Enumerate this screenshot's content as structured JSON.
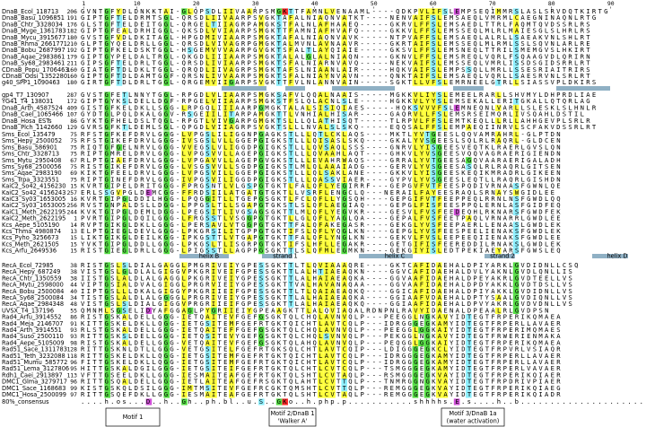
{
  "ruler": [
    1,
    10,
    20,
    30,
    40,
    50,
    60,
    70,
    80,
    90
  ],
  "groups": [
    {
      "rows": [
        {
          "name": "DnaB_Ecol_118713",
          "start": 206,
          "seq": "GVNTGFYDLDNKKTAI-GLQPSDLIIVAARPSMGKTTFAMNLVENAAML----QDKPVLIFSLEMPSEQIMMRSLASLSRVDQTKIRTG"
        },
        {
          "name": "DnaB_Basu_1096851",
          "start": 191,
          "seq": "GIPTGFTELDRMTSGL-QRSDLIIVAARPSVGKTAFALNIAQNVATKT----NENVAIFSLEMSAEQLVMRMLCAEGNINAQNLRTG"
        },
        {
          "name": "DnaB_Chtr_3328034",
          "start": 176,
          "seq": "GLSTGFTELDEITGGL-QRGELTIIAGRPAMGKSTFALNLAFHAAEQ-----GKRVLFFSLEMSAEDLTTRLFAQMTQVDSSRLRS"
        },
        {
          "name": "DnaB_Myge_1361783",
          "start": 182,
          "seq": "GIPTGFEALDRHIGGL-QKSDLVVIAARPSMGKTTFAMNIAFHVAFQ-----GKKVLFFSLEMSSEQLMLRLMAIESGLSLHRLRS"
        },
        {
          "name": "DnaB_Mycu_3915677",
          "start": 180,
          "seq": "GVSTGFVDLDKITAGL-HPGDMIVIAARPSMGKTAFALNIAQNVAVK-----NTPVAFFSLEMSAEQLALRLLSAEAKVNLSHLRT"
        },
        {
          "name": "DnaB_Rhma_2661771",
          "start": 210,
          "seq": "GLPTGYQELDRLLGGL-QRSDLVIVAGRPGMGKTALMVNLAVNAAVR-----GKRTAIFSLEMSSEQLMLRMLSSLSQVNLARLRE"
        },
        {
          "name": "DnaB_Bobu_2687997",
          "start": 192,
          "seq": "GIPTGFKELDSKTGGL-HSGEMVVVAARPGVGKTSFALTLAYQIAIE-----GKSVLFFSLEMSNEQLTTRILSMEMGVSLHKIRT"
        },
        {
          "name": "DnaB_Aqae_2983861",
          "start": 179,
          "seq": "GIPTGYPELDALTRGL-QKGDLIIIAARPSMGKTALALGLALNIAQN-----GKNVLFFSLEMSREQLVQRLFSQAAGVDLQRIRN"
        },
        {
          "name": "DnaB_Sy68_2983461",
          "start": 211,
          "seq": "GIPSGFTELDRLTGGL-QRSDLIVIAARPSMGKTSFALNIARNVAVQ-----NEKVAIFSLEMSSEQLVMRLISSDSGIDSRRLRT"
        },
        {
          "name": "CDnaB_Popu_1706463",
          "start": 160,
          "seq": "GIATGFTDLDKLTGGL-QRQDLIIVAGRPSMGKTAFSLNIAANLAIR-----HQKVAIFSLEMPSSQLLMRLLSSESRIAITRIRS"
        },
        {
          "name": "CDnaB_Odsi_1352280",
          "start": 160,
          "seq": "GIPTGFTDLDAMTGGF-QRSNLIVVAARPSMGKTSFALNIAYNVAVN-----QNKTAIFSLEMSAEQLVQRLLSAESRVNLSRLRT"
        },
        {
          "name": "g40_SPP1_1090463",
          "start": 180,
          "seq": "GIRTGFTDLDRLTGGL-QRGEMVIIGARPSVGKTTFVLNLANNVAIN-----SGKTLLVFSLEMRNEELGTRLLSIASSVPLDKIRS"
        }
      ]
    },
    {
      "rows": [
        {
          "name": "gp4_T7_130907",
          "start": 287,
          "seq": "GVSTGFETLNNYTGGL-RPGDLVLIAARPSMGKSAFVLQQALNAAIS-----MGKKVLIYSLEMEELRARLLSHVMYLDHPRDLIAE"
        },
        {
          "name": "YG41_T4_138031",
          "start": 172,
          "seq": "GIPTGYKSLDELLDGF-RPGELVIIAARPSMGKSTFSLQLACNLSLE-----HGKKVLYYSLEMSEKALLERITGKALLQTQRLAG"
        },
        {
          "name": "DnaB_Arth_4587524",
          "start": 409,
          "seq": "GISTGFKELDKLLSGG-LRPGQLIIIAARPGMGKTALALSISIQIAES-----HQKSVVVFSLEMNEQNLVARLLSLESKLSLHNLR"
        },
        {
          "name": "DnaB_Cael_1065466",
          "start": 107,
          "seq": "GYDTGLPQLDKALGGV-RSGEIILITARPAMGKTTLVNHIALHISAR-----GAQRVLLFSLEMSRSEIMQRLIVSQAHLDSTIL"
        },
        {
          "name": "DnaB_Hosa_ESTs",
          "start": 86,
          "seq": "GYKTGFHELDSLTQGL-RPGTLVIVGARPGMGKTSLLLQLATHISQT-----TLRPVLFFSLEMTKEQLLLRLLAHHGEVPLSRLR"
        },
        {
          "name": "DnaB_Plch_1142660",
          "start": 129,
          "seq": "GVRSGFKTLDEMLSGL-QPGDLVIIAGRPSVGKTSLLLNVALSLSKQ-----EQQSALFFSLEMPAEQIINRVLSCFAKVDSSRLRT"
        }
      ]
    },
    {
      "rows": [
        {
          "name": "Sms_Ecol_135479",
          "start": 75,
          "seq": "RFSTGFKEFDRVLGGG-LVPGSLILIGGNPGAGKSTLLLQTLCKLAQS----MKTLYVTGEESLQQVAMRAHRL-GLPTDN"
        },
        {
          "name": "Sms_Hepy_2500052",
          "start": 75,
          "seq": "RFSTGIKEFDRVLGGG-IVSGSLVLLGGEPGIGKSTLLLQISASLSKQ----GKALYVSGEESLSQLRLRAQRL-GLDCEN"
        },
        {
          "name": "Sms_Basu_586901",
          "start": 75,
          "seq": "RIQTGFGELNRVLGGG-VVEGSLVLIGGDPGIGKSTLLLQVSAQLSSS----GNRVLYISGEESVEQTKLRAERLGVSLQN"
        },
        {
          "name": "Sms_Chtr_3328713",
          "start": 75,
          "seq": "RIPTGMRELDRVLGGG-LVPGSVVLLAGEPGIGKSTLLLQVAAHLAQT----GHKVLYVSGEESVQQVAGRAERIGIENDN"
        },
        {
          "name": "Sms_Mytu_2950408",
          "start": 67,
          "seq": "RLPTGIAEFDRVLGGG-LVPGAVVLLAGEPGVGKSTLLLEVAHRWAQS----GRRALYVTGEESAGQVAARAERIGALADH"
        },
        {
          "name": "Sms_Sy68_2500056",
          "start": 75,
          "seq": "RISTGIKEFDRVLGGG-LVSGSVVLLSGDPGIGKSTLMLQLAAAIADG----GERVLYVSGEESASQLRLRAQRLGITSEN"
        },
        {
          "name": "Sms_Aqae_2983190",
          "start": 69,
          "seq": "KIKTGFEELDRVLGGG-LVPGSVILLGGEPGIGKSTLLLQLSAKLANE----GKKVLYISGEESKEQIKMRADRLGIKEEN"
        },
        {
          "name": "Sms_Trpa_3323551",
          "start": 75,
          "seq": "RIPTGINEFDRVLGGG-IVPGSVILIGGDPGIGKSTLLLQASSVIAER----GYPVLYVSGEESLEQTLLRAQRLGISHDN"
        },
        {
          "name": "KaiC2_So42_4156230",
          "start": 15,
          "seq": "KVRTGIPELDRITGGG-FPRGSNTLVLGSPGTGKTLFALQFLYEGIRRF---GEPGVFVTFEESPQDIVRNAASFGWNLQE"
        },
        {
          "name": "KaiC2_So42_4156243",
          "start": 257,
          "seq": "ERLSSGVPGLDEMCGG-FFRDSIILATGATGTGKTLLVSRFLENGCLQ---NERAILFAYEESRAQLSRNAYSWGIDLEE"
        },
        {
          "name": "KaiC3_Sy03_1653005",
          "start": 16,
          "seq": "KVRTGIPGLDDILHGG-LPQGGITLLTGEPGSGKTLFCLQFLLYGSQH----GEPGIFVTFEEPPEQLRRNLNSFGWDLQQ"
        },
        {
          "name": "KaiC2_Sy03_1653005",
          "start": 256,
          "seq": "RVSTGNPALDSLLDGG-LPPGSLTLLSGAPGTGKSTLSLQFLAEGIAQ----GEPGLFISFEESPPQLERNLASFGIDFEQ"
        },
        {
          "name": "KaiC1_Meth_2622195",
          "start": 244,
          "seq": "KVKTGIPGLDEMLDGG-LPEGSITLIVGSAGSGKTTLMLQFLYEGVKR----GESVLFVSFEEDEQHLRKNARSFGWDFEK"
        },
        {
          "name": "KaiC2_Meth_2622195",
          "start": 1,
          "seq": "PVRTGIPGLDQILGGG-LFRGSSTLVSGGPGTGKTLLGLQFLYAGLQA----GEPALFVSFEETPAQLVRNARRLGWDLEE"
        },
        {
          "name": "Kcs_Aepe_5105190",
          "start": 14,
          "seq": "RVPTGIKGLDKLLGGG-LPERSAVLVTGGPGTGKTTFALQFAKEGASR----GEKGLYVSFEEPAERLLENAASLGWDLEK"
        },
        {
          "name": "Kcs_Thma_4980874",
          "start": 13,
          "seq": "ELPTGIEGLDEVLGGG-LPKGRSILITGPPGTGKTIFSLQFLYQGLKN----GEPGLYVSFEESPEELIENAKSFGWDLEK"
        },
        {
          "name": "Kcs_Pyho_3256673",
          "start": 15,
          "seq": "LIKTGIKGLDEILKGG-IPKGSTTLVTGAPGTGKTTFALQFLYNGLKN----GEKVLFVSLEEPEEQIIENAKSFGWDLEE"
        },
        {
          "name": "Kcs_Meth_2621505",
          "start": 15,
          "seq": "YVKTGIPGLDDLLGGG-LPKGSLTLISGRPGTGKTIFSLHFLLEGAKR----GETGIFISFEEREDDILRNAKSLGWDLEK"
        },
        {
          "name": "Kcs_Arfu_2649536",
          "start": 15,
          "seq": "RISTGIEGLDRLLGGG-LPIGSSTLLAGPPGSGKTTLSLQFMLEGMKN----GEKGIYISLEDTPEKIAEYARSFGWSLEQ"
        }
      ]
    },
    {
      "rows": [
        {
          "name": "RecA_Ecol_72985",
          "start": 38,
          "seq": "RISTGSLSLDIALGAGGLPMGRIVEIYGPESSGKTTLTLQVIAAAQRE----GKTCAFIDAEHALDPIYARKLGVDIDNLLCSQ"
        },
        {
          "name": "RecA_Hepy_687249",
          "start": 38,
          "seq": "VISTGSLGLDLALGIGGVPKGRIVEIFGPESSGKTTLALHTIAEAQKN----GGVCAFIDAEHALDVLYAKNLGVDLQNLLIS"
        },
        {
          "name": "RecA_Chtr_1350559",
          "start": 38,
          "seq": "IISTGSLALDLALGAGGLPKGRIVEIYGPESSGKTTLALHAIAEAQKA----GGVAAFIDAEHALDPEYAKRLGVDTEELLVS"
        },
        {
          "name": "RecA_Mytu_2598000",
          "start": 44,
          "seq": "VIPTGSIALDVALGIGGLPRGRVIEIYGPESSGKTTVALHAVANAQAA----GGVAAFIDAEHALDPDYAKKLGVDTDSLLVS"
        },
        {
          "name": "RecA_Bobu_2500084",
          "start": 40,
          "seq": "IIPTGSLLLDKALGIGGYPKGRIIEIFGPESSGKTTLTLQAIAEAQKQ----GGICAFIDAEHALDPIYAKKLGVDIDNLLVS"
        },
        {
          "name": "RecA_Sy68_2500084",
          "start": 34,
          "seq": "TISTGSLALDLALGGGGLPRGRIVEIYGPESSGKTTLALHAIAEAQKA----GGIAAFVDAEHALDPTYSAALGVDIQNLLVS"
        },
        {
          "name": "RecA_Aqae_2984348",
          "start": 48,
          "seq": "VISTGSLSLDIALGIGGVPRGRIIEIFGPESSGKTTLALHAIAEAQKQ----GGIAAFIDAEHALDPVYAKRLGVDVDNLLVS"
        },
        {
          "name": "UVSX_T4_137196",
          "start": 55,
          "seq": "QMNMLSGSELIDYAFGGAGLPYGRIIEIYGPEAAGKTTLALQVIAQALRDNPNLRAVYIDAENALDPEAALRLGVDPSN"
        },
        {
          "name": "Rad4_Arfu_3914552",
          "start": 86,
          "seq": "RISTGSKALDELLGGG-IETQAITEVFGEFGSGKTQLCHQLAVNVQLP---PEEGGLNGKAVYIDTEGTFRPERIKQMAEA"
        },
        {
          "name": "Rad4_Meja_2146707",
          "start": 91,
          "seq": "KITTGSKELDKLLQGG-IETGSITEMFGEFRTGKTQICHTLAVTCQLP---IDRGGGEGKAMYIDTEGTFRPERLLAVAER"
        },
        {
          "name": "Rad4_Arth_3914551",
          "start": 93,
          "seq": "RLSTGSKALDELLGGG-IETQAITEFFGEFGSGKTQLCHQLAVNVQLP---PEEGGLGGKAIYIDTEGTFRPERIMQMAES"
        },
        {
          "name": "Rad4_Suso_2500110",
          "start": 93,
          "seq": "RITTGSKSLDELLGGG-IETQSITEVYGEFGSGKTQLCHQLSVNVQLP---PEKGGLNGKAVYIDTEGTFRWERIENMAKA"
        },
        {
          "name": "Rad4_Aepe_5105009",
          "start": 98,
          "seq": "RISTGSKALDELLGGG-VETQAITEVFGEFGSGKTQLAHQLAVNVQLP---PEQGGLGGKAIYIDTEGTFRPERIKQMAEA"
        },
        {
          "name": "Rad51_Sace_1311783",
          "start": 128,
          "seq": "RITTGSKNLDTLLGGG-VETGSITELFGEFRTGKSQLCHTLAVTCQIP---LDIGGGEGKCLYIDTEGTFRPVRLVSIAQR"
        },
        {
          "name": "Rad51_Teth_3232088",
          "start": 118,
          "seq": "RITTGSKELDKLLQGG-IETGSITEMFGEFRTGKTQICHTLAVTCQLP---IDRGGGEGKAMYIDTEGTFRPERLLAVAER"
        },
        {
          "name": "Rad51_Mumu_585772",
          "start": 96,
          "seq": "FITTGSKELDKLLQGG-IETGSITEMFGEFRTGKTQICHTLAVTCQLP---IDRGGGEGKAMYIDTEGTFRPERLLAVAER"
        },
        {
          "name": "Rad51_Lema_3127806",
          "start": 95,
          "seq": "HITTGSKALDGILGGG-IETGSITEIFGEFRTGKTQLCHTLCVTCQLP---TSMGGGEGKAMYIDTEGTFRPERLVAVAER"
        },
        {
          "name": "Rdh1_Caei_2913897",
          "start": 113,
          "seq": "VFTTGSEELDKLLGGG-IESMAITEAFGEFRTGKTQLSHTLCVTAQLP---RSMGGGEGKVAYIDTEGTFRPERIKQIAER"
        },
        {
          "name": "DMC1_Glma_3279717",
          "start": 96,
          "seq": "RITTGSQALDELLGGG-IETLAITEAFGEFRSGKTQLAHTLCVTTQLP---TNMRGGNGKVAYIDTEGTFRPDRIVPIAER"
        },
        {
          "name": "DMC1_Sace_1168683",
          "start": 99,
          "seq": "KISTGSKQLDSILGGG-IMTMSITEVFGEFRCGKTQMSHTLCVTTQLP---REMGGGEGKVAYIDTEGTFRPERIKQIAEG"
        },
        {
          "name": "DMC1_Hosa_2500099",
          "start": 97,
          "seq": "RITTGSQEFDKLLGGG-IESMAITEAFGEFRTGKTQLSHTLCVTAQLP---REMGGGEGKVAYIDTEGTFRPERIKQIADR"
        }
      ]
    }
  ],
  "consensus": {
    "name": "80%_consensus",
    "seq": "....h.os...D..h..Gh..ph.bl..u.S..GKo..h.php.p...........shhhhs.E.s....h..b....................."
  },
  "structure_labels": [
    "helix B",
    "strand 1",
    "helix C",
    "strand 2",
    "helix D"
  ],
  "motifs": [
    {
      "label": "Motif 1"
    },
    {
      "label": "Motif 2/DnaB 1",
      "sublabel": "'Walker A'"
    },
    {
      "label": "Motif 3/DnaB 1a",
      "sublabel": "(water activation)"
    }
  ]
}
